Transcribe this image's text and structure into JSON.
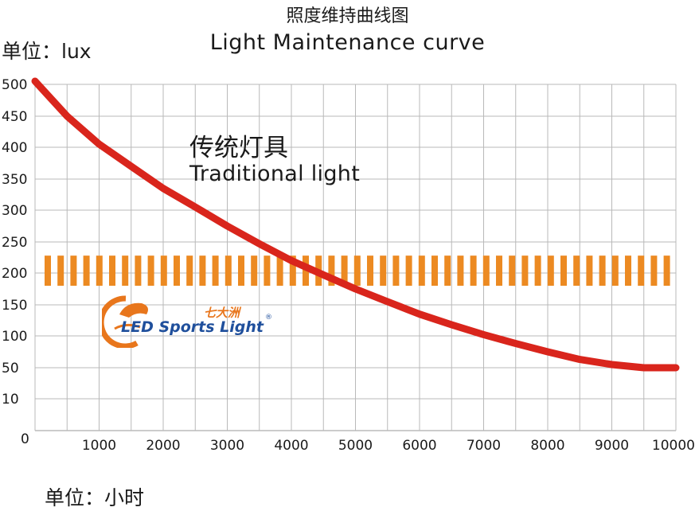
{
  "chart_data": {
    "type": "line",
    "title": "照度维持曲线图",
    "subtitle": "Light Maintenance curve",
    "ylabel": "单位：lux",
    "xlabel": "单位：小时",
    "x_ticks": [
      "1000",
      "2000",
      "3000",
      "4000",
      "5000",
      "6000",
      "7000",
      "8000",
      "9000",
      "10000"
    ],
    "y_ticks": [
      "0",
      "10",
      "50",
      "100",
      "150",
      "200",
      "250",
      "300",
      "350",
      "400",
      "450",
      "500"
    ],
    "grid": true,
    "series": [
      {
        "name": "传统灯具 Traditional light",
        "color": "#d9251c",
        "style": "solid",
        "x": [
          0,
          500,
          1000,
          1500,
          2000,
          2500,
          3000,
          3500,
          4000,
          4500,
          5000,
          5500,
          6000,
          6500,
          7000,
          7500,
          8000,
          8500,
          9000,
          9500,
          10000
        ],
        "y": [
          505,
          450,
          405,
          370,
          335,
          305,
          275,
          247,
          220,
          197,
          175,
          155,
          135,
          118,
          102,
          88,
          75,
          63,
          55,
          50,
          50
        ]
      },
      {
        "name": "",
        "color": "#ec8a22",
        "style": "dashed-band",
        "x": [
          0,
          10000
        ],
        "y": [
          205,
          205
        ],
        "band": [
          180,
          228
        ]
      }
    ],
    "annotations": [
      {
        "cn": "传统灯具",
        "en": "Traditional light"
      }
    ]
  },
  "logo": {
    "cn": "七大洲",
    "en": "LED Sports Light",
    "reg": "®"
  }
}
